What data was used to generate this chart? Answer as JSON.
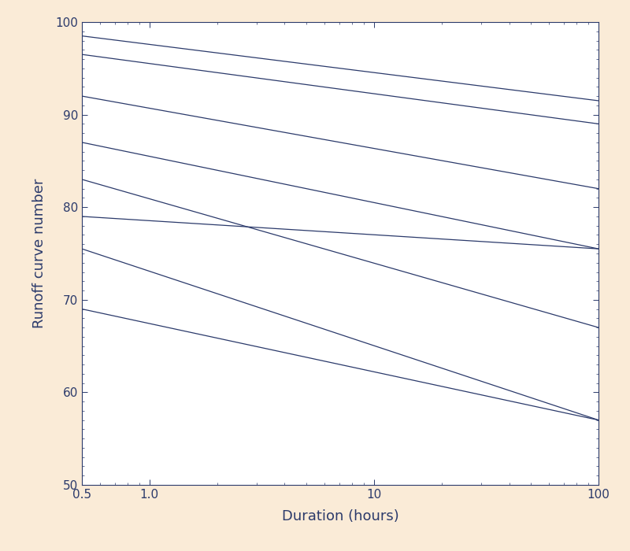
{
  "background_color": "#faebd7",
  "plot_background": "#ffffff",
  "line_color": "#2b3a6b",
  "line_width": 0.9,
  "xlabel": "Duration (hours)",
  "ylabel": "Runoff curve number",
  "xmin": 0.5,
  "xmax": 100,
  "ymin": 50,
  "ymax": 100,
  "yticks": [
    50,
    60,
    70,
    80,
    90,
    100
  ],
  "curves": [
    {
      "start": 98.5,
      "end": 91.5
    },
    {
      "start": 96.5,
      "end": 89.0
    },
    {
      "start": 92.0,
      "end": 82.0
    },
    {
      "start": 87.0,
      "end": 75.5
    },
    {
      "start": 83.0,
      "end": 67.0
    },
    {
      "start": 79.0,
      "end": 75.5
    },
    {
      "start": 75.5,
      "end": 57.0
    },
    {
      "start": 69.0,
      "end": 57.0
    }
  ]
}
